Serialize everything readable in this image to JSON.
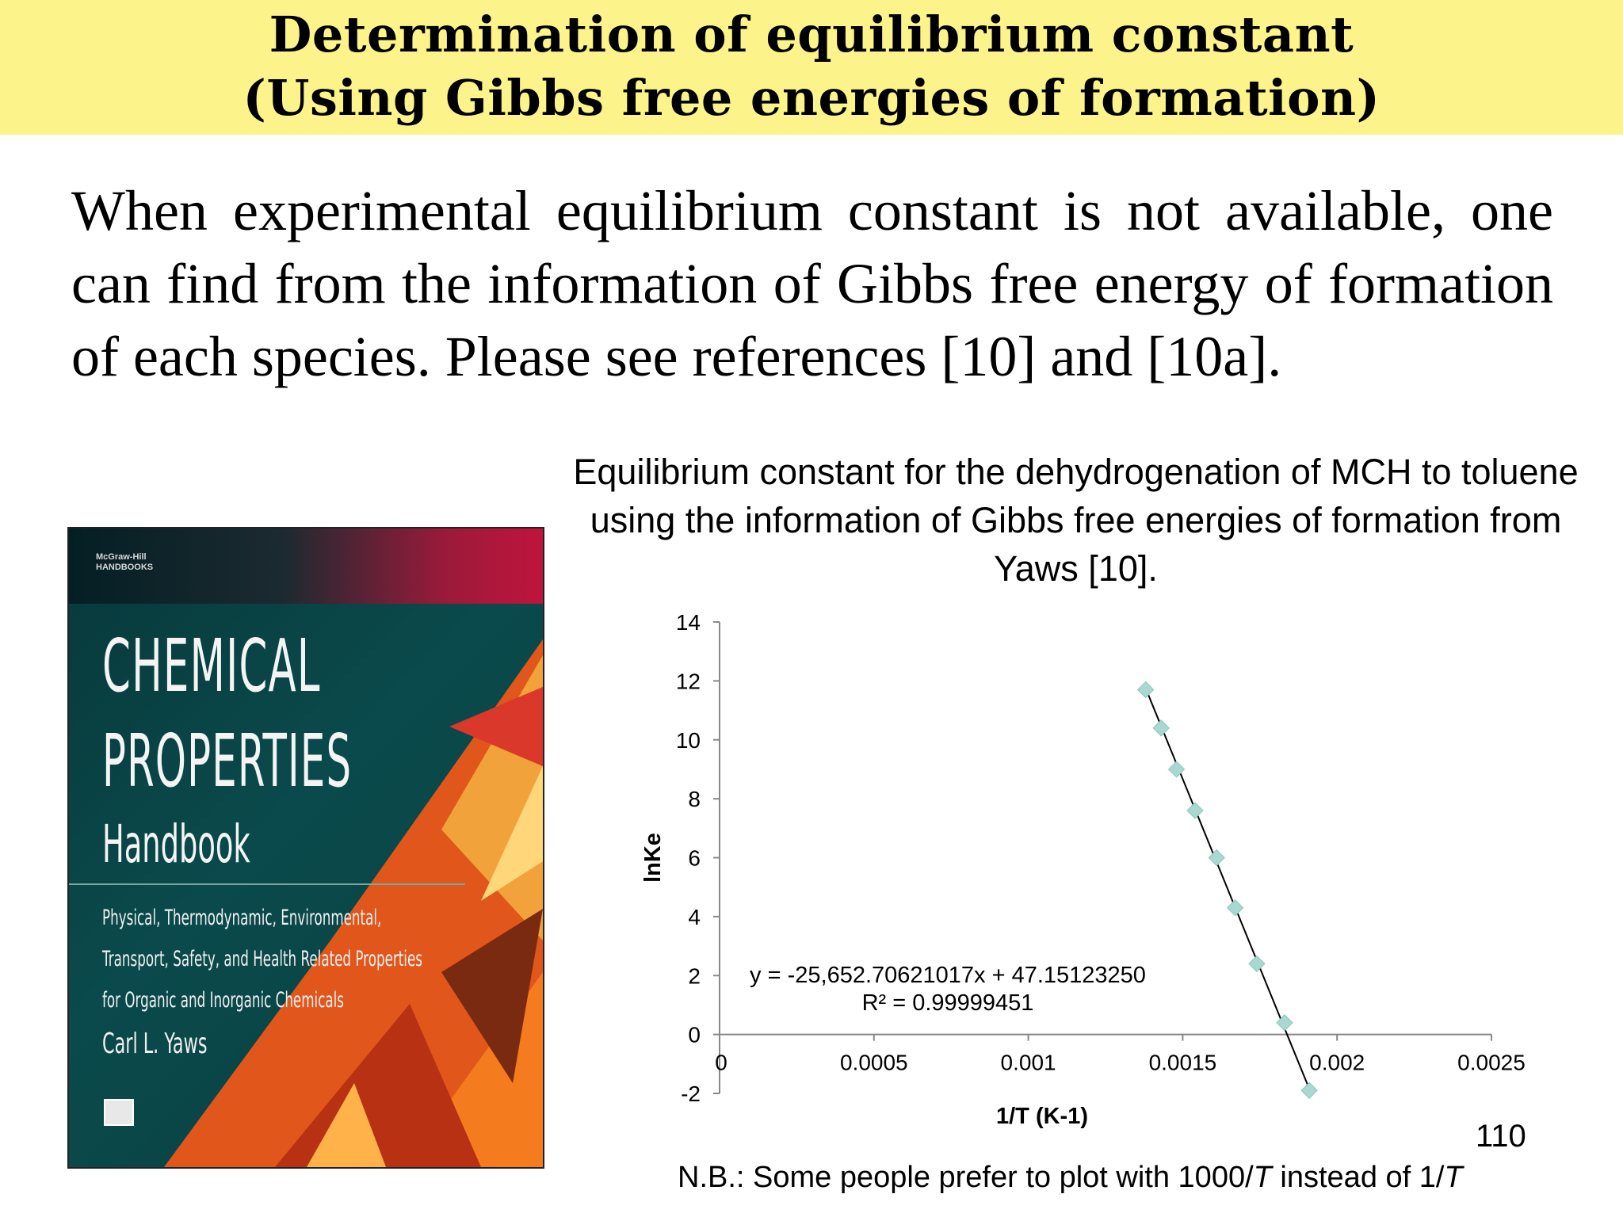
{
  "header": {
    "line1": "Determination of equilibrium constant",
    "line2": "(Using Gibbs free energies of formation)"
  },
  "body_text": "When experimental equilibrium constant is not available, one can find from the information of Gibbs free energy of formation of each species. Please see references [10] and [10a].",
  "caption": "Equilibrium constant for the dehydrogenation of MCH to toluene using the information of Gibbs free energies of formation from Yaws [10].",
  "book_cover": {
    "publisher": "McGraw-Hill HANDBOOKS",
    "title_line1": "CHEMICAL",
    "title_line2": "PROPERTIES",
    "title_line3": "Handbook",
    "subtitle_line1": "Physical, Thermodynamic, Environmental,",
    "subtitle_line2": "Transport, Safety, and Health Related Properties",
    "subtitle_line3": "for Organic and Inorganic Chemicals",
    "author": "Carl L. Yaws"
  },
  "chart_data": {
    "type": "scatter",
    "xlabel": "1/T (K-1)",
    "ylabel": "lnKe",
    "xlim": [
      0,
      0.0025
    ],
    "ylim": [
      -2,
      14
    ],
    "x_ticks": [
      0,
      0.0005,
      0.001,
      0.0015,
      0.002,
      0.0025
    ],
    "x_tick_labels": [
      "0",
      "0.0005",
      "0.001",
      "0.0015",
      "0.002",
      "0.0025"
    ],
    "y_ticks": [
      -2,
      0,
      2,
      4,
      6,
      8,
      10,
      12,
      14
    ],
    "y_tick_labels": [
      "-2",
      "0",
      "2",
      "4",
      "6",
      "8",
      "10",
      "12",
      "14"
    ],
    "points": [
      {
        "x": 0.00138,
        "y": 11.7
      },
      {
        "x": 0.00143,
        "y": 10.4
      },
      {
        "x": 0.00148,
        "y": 9.0
      },
      {
        "x": 0.00154,
        "y": 7.6
      },
      {
        "x": 0.00161,
        "y": 6.0
      },
      {
        "x": 0.00167,
        "y": 4.3
      },
      {
        "x": 0.00174,
        "y": 2.4
      },
      {
        "x": 0.00183,
        "y": 0.4
      },
      {
        "x": 0.00191,
        "y": -1.9
      }
    ],
    "trendline": {
      "slope": -25652.70621017,
      "intercept": 47.1512325,
      "x_range": [
        0.00138,
        0.00191
      ]
    },
    "equation_label": "y = -25,652.70621017x + 47.15123250",
    "r2_label": "R² = 0.99999451",
    "marker_color": "#a8d8d0",
    "line_color": "#000000"
  },
  "page_number": "110",
  "note": {
    "prefix": "N.B.: Some people prefer to plot with 1000/",
    "italic1": "T",
    "middle": " instead of 1/",
    "italic2": "T"
  }
}
